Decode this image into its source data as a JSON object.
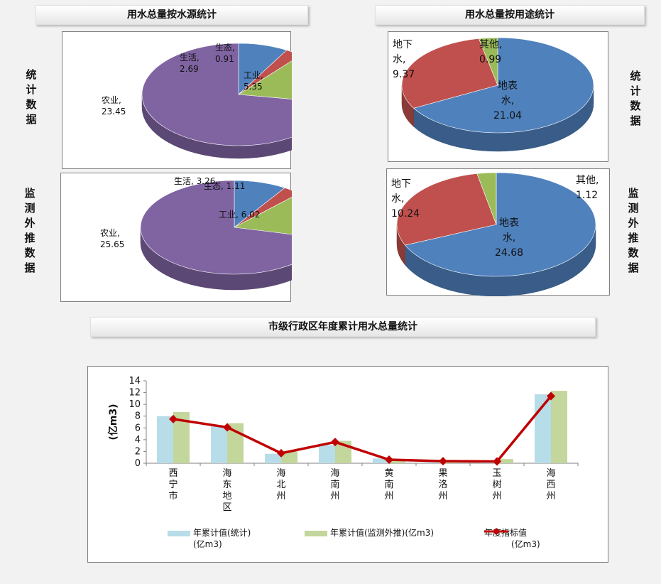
{
  "headers": {
    "source": "用水总量按水源统计",
    "usage": "用水总量按用途统计",
    "region": "市级行政区年度累计用水总量统计"
  },
  "side_labels": {
    "left_stat": "统计数据",
    "left_monitor": "监测外推数据",
    "right_stat": "统计数据",
    "right_monitor": "监测外推数据"
  },
  "colors": {
    "blue": "#4f81bd",
    "red": "#c0504d",
    "green": "#9bbb59",
    "purple": "#8064a2",
    "bar_stat": "#b7dde8",
    "bar_monitor": "#c3d69b",
    "line": "#c00000"
  },
  "chart_data": [
    {
      "type": "pie",
      "title": "用水总量按水源统计",
      "subtitle": "统计数据",
      "slices": [
        {
          "name": "生活",
          "value": 2.69,
          "label": "生活,",
          "value_label": "2.69"
        },
        {
          "name": "生态",
          "value": 0.91,
          "label": "生态,",
          "value_label": "0.91"
        },
        {
          "name": "工业",
          "value": 5.35,
          "label": "工业,",
          "value_label": "5.35"
        },
        {
          "name": "农业",
          "value": 23.45,
          "label": "农业,",
          "value_label": "23.45"
        }
      ]
    },
    {
      "type": "pie",
      "title": "用水总量按水源统计",
      "subtitle": "监测外推数据",
      "slices": [
        {
          "name": "生活",
          "value": 3.26,
          "label": "生活, 3.26"
        },
        {
          "name": "生态",
          "value": 1.11,
          "label": "生态, 1.11"
        },
        {
          "name": "工业",
          "value": 6.02,
          "label": "工业, 6.02"
        },
        {
          "name": "农业",
          "value": 25.65,
          "label": "农业,",
          "value_label": "25.65"
        }
      ]
    },
    {
      "type": "pie",
      "title": "用水总量按用途统计",
      "subtitle": "统计数据",
      "slices": [
        {
          "name": "地表水",
          "value": 21.04,
          "label": "地表",
          "label2": "水,",
          "value_label": "21.04"
        },
        {
          "name": "地下水",
          "value": 9.37,
          "label": "地下",
          "label2": "水,",
          "value_label": "9.37"
        },
        {
          "name": "其他",
          "value": 0.99,
          "label": "其他,",
          "value_label": "0.99"
        }
      ]
    },
    {
      "type": "pie",
      "title": "用水总量按用途统计",
      "subtitle": "监测外推数据",
      "slices": [
        {
          "name": "地表水",
          "value": 24.68,
          "label": "地表",
          "label2": "水,",
          "value_label": "24.68"
        },
        {
          "name": "地下水",
          "value": 10.24,
          "label": "地下",
          "label2": "水,",
          "value_label": "10.24"
        },
        {
          "name": "其他",
          "value": 1.12,
          "label": "其他,",
          "value_label": "1.12"
        }
      ]
    },
    {
      "type": "bar",
      "title": "市级行政区年度累计用水总量统计",
      "ylabel": "(亿m3)",
      "ylim": [
        0,
        14
      ],
      "yticks": [
        0,
        2,
        4,
        6,
        8,
        10,
        12,
        14
      ],
      "categories": [
        "西宁市",
        "海东地区",
        "海北州",
        "海南州",
        "黄南州",
        "果洛州",
        "玉树州",
        "海西州"
      ],
      "series": [
        {
          "name": "年累计值(统计)(亿m3)",
          "legend_line1": "年累计值(统计)",
          "legend_line2": "(亿m3)",
          "kind": "bar",
          "values": [
            8.0,
            6.3,
            1.6,
            3.1,
            0.8,
            0.2,
            0.2,
            11.7
          ]
        },
        {
          "name": "年累计值(监测外推)(亿m3)",
          "legend_line1": "年累计值(监测外推)(亿m3)",
          "kind": "bar",
          "values": [
            8.7,
            6.8,
            2.0,
            3.8,
            0.7,
            0.3,
            0.7,
            12.3
          ]
        },
        {
          "name": "年度指标值(亿m3)",
          "legend_line1": "年度指标值",
          "legend_line2": "(亿m3)",
          "kind": "line",
          "values": [
            7.5,
            6.1,
            1.7,
            3.6,
            0.6,
            0.35,
            0.3,
            11.4
          ]
        }
      ],
      "legend_position": "bottom",
      "grid": false
    }
  ]
}
